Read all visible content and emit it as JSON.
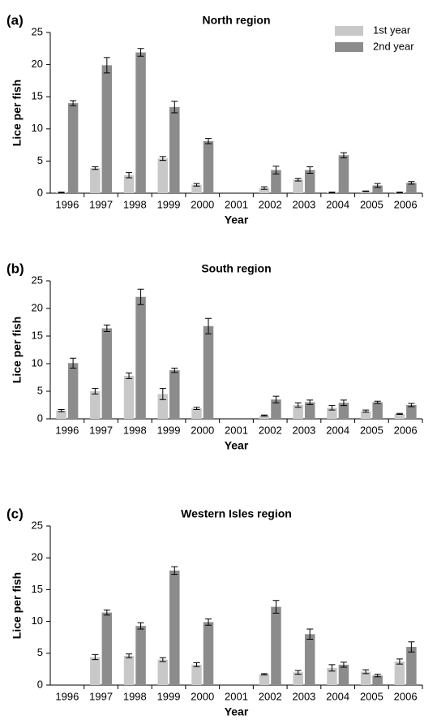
{
  "chart_data": [
    {
      "type": "bar",
      "panel_label": "(a)",
      "title": "North region",
      "x_label": "Year",
      "y_label": "Lice per fish",
      "categories": [
        "1996",
        "1997",
        "1998",
        "1999",
        "2000",
        "2001",
        "2002",
        "2003",
        "2004",
        "2005",
        "2006"
      ],
      "series": [
        {
          "name": "1st year",
          "color": "#c8c8c8",
          "values": [
            0.1,
            3.9,
            2.8,
            5.4,
            1.3,
            null,
            0.8,
            2.1,
            0.1,
            0.3,
            0.1
          ],
          "errors": [
            0.05,
            0.2,
            0.4,
            0.3,
            0.2,
            null,
            0.2,
            0.2,
            0.05,
            0.05,
            0.05
          ]
        },
        {
          "name": "2nd year",
          "color": "#8c8c8c",
          "values": [
            14.0,
            19.9,
            21.9,
            13.4,
            8.1,
            null,
            3.6,
            3.6,
            5.9,
            1.2,
            1.6
          ],
          "errors": [
            0.4,
            1.2,
            0.6,
            0.9,
            0.4,
            null,
            0.6,
            0.5,
            0.4,
            0.3,
            0.2
          ]
        }
      ],
      "ylim": [
        0,
        25
      ],
      "yticks": [
        0,
        5,
        10,
        15,
        20,
        25
      ],
      "legend": "top-right"
    },
    {
      "type": "bar",
      "panel_label": "(b)",
      "title": "South region",
      "x_label": "Year",
      "y_label": "Lice per fish",
      "categories": [
        "1996",
        "1997",
        "1998",
        "1999",
        "2000",
        "2001",
        "2002",
        "2003",
        "2004",
        "2005",
        "2006"
      ],
      "series": [
        {
          "color": "#c8c8c8",
          "values": [
            1.5,
            5.0,
            7.8,
            4.5,
            1.9,
            null,
            0.6,
            2.5,
            2.0,
            1.4,
            0.9
          ],
          "errors": [
            0.2,
            0.5,
            0.5,
            1.0,
            0.2,
            null,
            0.1,
            0.4,
            0.4,
            0.2,
            0.1
          ]
        },
        {
          "color": "#8c8c8c",
          "values": [
            10.1,
            16.4,
            22.1,
            8.8,
            16.8,
            null,
            3.5,
            3.0,
            2.9,
            3.0,
            2.5
          ],
          "errors": [
            0.9,
            0.6,
            1.4,
            0.4,
            1.4,
            null,
            0.6,
            0.4,
            0.5,
            0.2,
            0.3
          ]
        }
      ],
      "ylim": [
        0,
        25
      ],
      "yticks": [
        0,
        5,
        10,
        15,
        20,
        25
      ]
    },
    {
      "type": "bar",
      "panel_label": "(c)",
      "title": "Western Isles region",
      "x_label": "Year",
      "y_label": "Lice per fish",
      "categories": [
        "1996",
        "1997",
        "1998",
        "1999",
        "2000",
        "2001",
        "2002",
        "2003",
        "2004",
        "2005",
        "2006"
      ],
      "series": [
        {
          "color": "#c8c8c8",
          "values": [
            null,
            4.4,
            4.6,
            4.0,
            3.2,
            null,
            1.7,
            2.0,
            2.7,
            2.1,
            3.7
          ],
          "errors": [
            null,
            0.4,
            0.3,
            0.3,
            0.3,
            null,
            0.1,
            0.3,
            0.5,
            0.3,
            0.4
          ]
        },
        {
          "color": "#8c8c8c",
          "values": [
            null,
            11.4,
            9.3,
            18.0,
            9.9,
            null,
            12.3,
            8.0,
            3.2,
            1.5,
            6.0
          ],
          "errors": [
            null,
            0.4,
            0.5,
            0.6,
            0.5,
            null,
            1.0,
            0.8,
            0.4,
            0.2,
            0.8
          ]
        }
      ],
      "ylim": [
        0,
        25
      ],
      "yticks": [
        0,
        5,
        10,
        15,
        20,
        25
      ]
    }
  ]
}
